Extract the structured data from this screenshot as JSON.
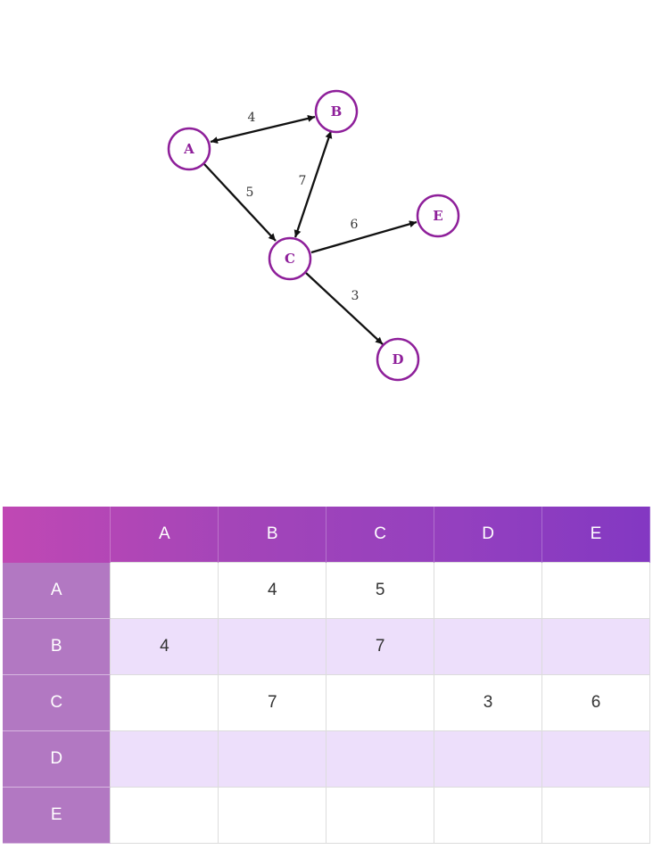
{
  "graph": {
    "nodes": [
      "A",
      "B",
      "C",
      "D",
      "E"
    ],
    "edges": [
      {
        "from": "A",
        "to": "B",
        "weight": "4",
        "bidirectional": true
      },
      {
        "from": "A",
        "to": "C",
        "weight": "5",
        "bidirectional": false
      },
      {
        "from": "C",
        "to": "B",
        "weight": "7",
        "bidirectional": true
      },
      {
        "from": "C",
        "to": "E",
        "weight": "6",
        "bidirectional": false
      },
      {
        "from": "C",
        "to": "D",
        "weight": "3",
        "bidirectional": false
      }
    ],
    "colors": {
      "node_stroke": "#8e1f9a",
      "node_label": "#8e1f9a",
      "edge": "#111111"
    }
  },
  "matrix": {
    "corner": "",
    "columns": [
      "A",
      "B",
      "C",
      "D",
      "E"
    ],
    "rows": [
      {
        "label": "A",
        "cells": [
          "",
          "4",
          "5",
          "",
          ""
        ]
      },
      {
        "label": "B",
        "cells": [
          "4",
          "",
          "7",
          "",
          ""
        ]
      },
      {
        "label": "C",
        "cells": [
          "",
          "7",
          "",
          "3",
          "6"
        ]
      },
      {
        "label": "D",
        "cells": [
          "",
          "",
          "",
          "",
          ""
        ]
      },
      {
        "label": "E",
        "cells": [
          "",
          "",
          "",
          "",
          ""
        ]
      }
    ],
    "colors": {
      "header_start": "#c048b4",
      "header_end": "#8338c2",
      "row_header": "#b278c2",
      "stripe": "#eddffb"
    }
  }
}
